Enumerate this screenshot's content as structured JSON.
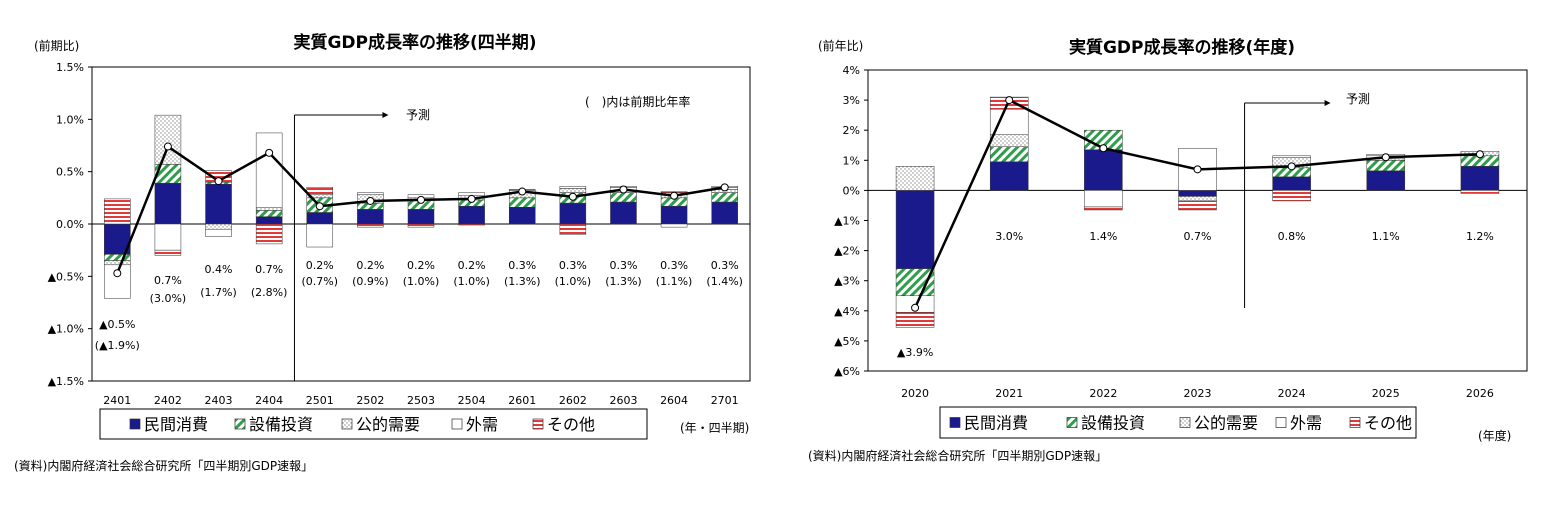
{
  "colors": {
    "consumption": "#1a1a8c",
    "investment": "#2e9e4a",
    "public": "#8a8a8a",
    "external": "#ffffff",
    "other": "#e03a3a",
    "line": "#000000"
  },
  "chart_data": [
    {
      "type": "bar",
      "stacked": true,
      "title": "実質GDP成長率の推移(四半期)",
      "ylabel": "(前期比)",
      "xlabel": "(年・四半期)",
      "source": "(資料)内閣府経済社会総合研究所「四半期別GDP速報」",
      "note": "(　)内は前期比年率",
      "forecast_label": "予測",
      "forecast_start": "2501",
      "ylim": [
        -1.5,
        1.5
      ],
      "yticks": [
        1.5,
        1.0,
        0.5,
        0.0,
        -0.5,
        -1.0,
        -1.5
      ],
      "ytick_labels": [
        "1.5%",
        "1.0%",
        "0.5%",
        "0.0%",
        "▲0.5%",
        "▲1.0%",
        "▲1.5%"
      ],
      "categories": [
        "2401",
        "2402",
        "2403",
        "2404",
        "2501",
        "2502",
        "2503",
        "2504",
        "2601",
        "2602",
        "2603",
        "2604",
        "2701"
      ],
      "series": [
        {
          "name": "民間消費",
          "key": "consumption",
          "values": [
            -0.29,
            0.39,
            0.38,
            0.07,
            0.11,
            0.14,
            0.14,
            0.17,
            0.16,
            0.2,
            0.21,
            0.17,
            0.21
          ]
        },
        {
          "name": "設備投資",
          "key": "investment",
          "values": [
            -0.06,
            0.18,
            0.02,
            0.06,
            0.14,
            0.06,
            0.09,
            0.06,
            0.09,
            0.1,
            0.09,
            0.08,
            0.09
          ]
        },
        {
          "name": "公的需要",
          "key": "public",
          "values": [
            -0.04,
            0.47,
            -0.05,
            0.03,
            0.03,
            0.08,
            0.02,
            0.04,
            0.05,
            0.04,
            0.02,
            0.05,
            0.03
          ]
        },
        {
          "name": "外需",
          "key": "external",
          "values": [
            -0.32,
            -0.25,
            -0.07,
            0.71,
            -0.22,
            0.02,
            0.03,
            0.03,
            0.02,
            0.02,
            0.03,
            -0.03,
            0.02
          ]
        },
        {
          "name": "その他",
          "key": "other",
          "values": [
            0.24,
            -0.05,
            0.11,
            -0.19,
            0.07,
            -0.03,
            -0.03,
            -0.01,
            0.01,
            -0.1,
            0.01,
            0.01,
            0.01
          ]
        }
      ],
      "line": {
        "values": [
          -0.47,
          0.74,
          0.41,
          0.68,
          0.17,
          0.22,
          0.23,
          0.24,
          0.31,
          0.26,
          0.33,
          0.27,
          0.35
        ]
      },
      "labels": [
        {
          "value": "▲0.5%",
          "annual": "(▲1.9%)"
        },
        {
          "value": "0.7%",
          "annual": "(3.0%)"
        },
        {
          "value": "0.4%",
          "annual": "(1.7%)"
        },
        {
          "value": "0.7%",
          "annual": "(2.8%)"
        },
        {
          "value": "0.2%",
          "annual": "(0.7%)"
        },
        {
          "value": "0.2%",
          "annual": "(0.9%)"
        },
        {
          "value": "0.2%",
          "annual": "(1.0%)"
        },
        {
          "value": "0.2%",
          "annual": "(1.0%)"
        },
        {
          "value": "0.3%",
          "annual": "(1.3%)"
        },
        {
          "value": "0.3%",
          "annual": "(1.0%)"
        },
        {
          "value": "0.3%",
          "annual": "(1.3%)"
        },
        {
          "value": "0.3%",
          "annual": "(1.1%)"
        },
        {
          "value": "0.3%",
          "annual": "(1.4%)"
        }
      ],
      "legend": [
        "民間消費",
        "設備投資",
        "公的需要",
        "外需",
        "その他"
      ],
      "legend_position": "bottom"
    },
    {
      "type": "bar",
      "stacked": true,
      "title": "実質GDP成長率の推移(年度)",
      "ylabel": "(前年比)",
      "xlabel": "(年度)",
      "source": "(資料)内閣府経済社会総合研究所「四半期別GDP速報」",
      "forecast_label": "予測",
      "forecast_start": "2024",
      "ylim": [
        -6,
        4
      ],
      "yticks": [
        4,
        3,
        2,
        1,
        0,
        -1,
        -2,
        -3,
        -4,
        -5,
        -6
      ],
      "ytick_labels": [
        "4%",
        "3%",
        "2%",
        "1%",
        "0%",
        "▲1%",
        "▲2%",
        "▲3%",
        "▲4%",
        "▲5%",
        "▲6%"
      ],
      "categories": [
        "2020",
        "2021",
        "2022",
        "2023",
        "2024",
        "2025",
        "2026"
      ],
      "series": [
        {
          "name": "民間消費",
          "key": "consumption",
          "values": [
            -2.6,
            0.95,
            1.35,
            -0.2,
            0.45,
            0.65,
            0.8
          ]
        },
        {
          "name": "設備投資",
          "key": "investment",
          "values": [
            -0.9,
            0.5,
            0.65,
            0.0,
            0.3,
            0.35,
            0.35
          ]
        },
        {
          "name": "公的需要",
          "key": "public",
          "values": [
            0.8,
            0.4,
            0.0,
            -0.15,
            0.35,
            0.05,
            0.15
          ]
        },
        {
          "name": "外需",
          "key": "external",
          "values": [
            -0.55,
            0.85,
            -0.55,
            1.4,
            0.05,
            0.1,
            0.0
          ]
        },
        {
          "name": "その他",
          "key": "other",
          "values": [
            -0.5,
            0.4,
            -0.1,
            -0.3,
            -0.35,
            0.05,
            -0.1
          ]
        }
      ],
      "line": {
        "values": [
          -3.9,
          3.0,
          1.4,
          0.7,
          0.8,
          1.1,
          1.2
        ]
      },
      "labels": [
        {
          "value": "▲3.9%"
        },
        {
          "value": "3.0%"
        },
        {
          "value": "1.4%"
        },
        {
          "value": "0.7%"
        },
        {
          "value": "0.8%"
        },
        {
          "value": "1.1%"
        },
        {
          "value": "1.2%"
        }
      ],
      "legend": [
        "民間消費",
        "設備投資",
        "公的需要",
        "外需",
        "その他"
      ],
      "legend_position": "bottom"
    }
  ]
}
